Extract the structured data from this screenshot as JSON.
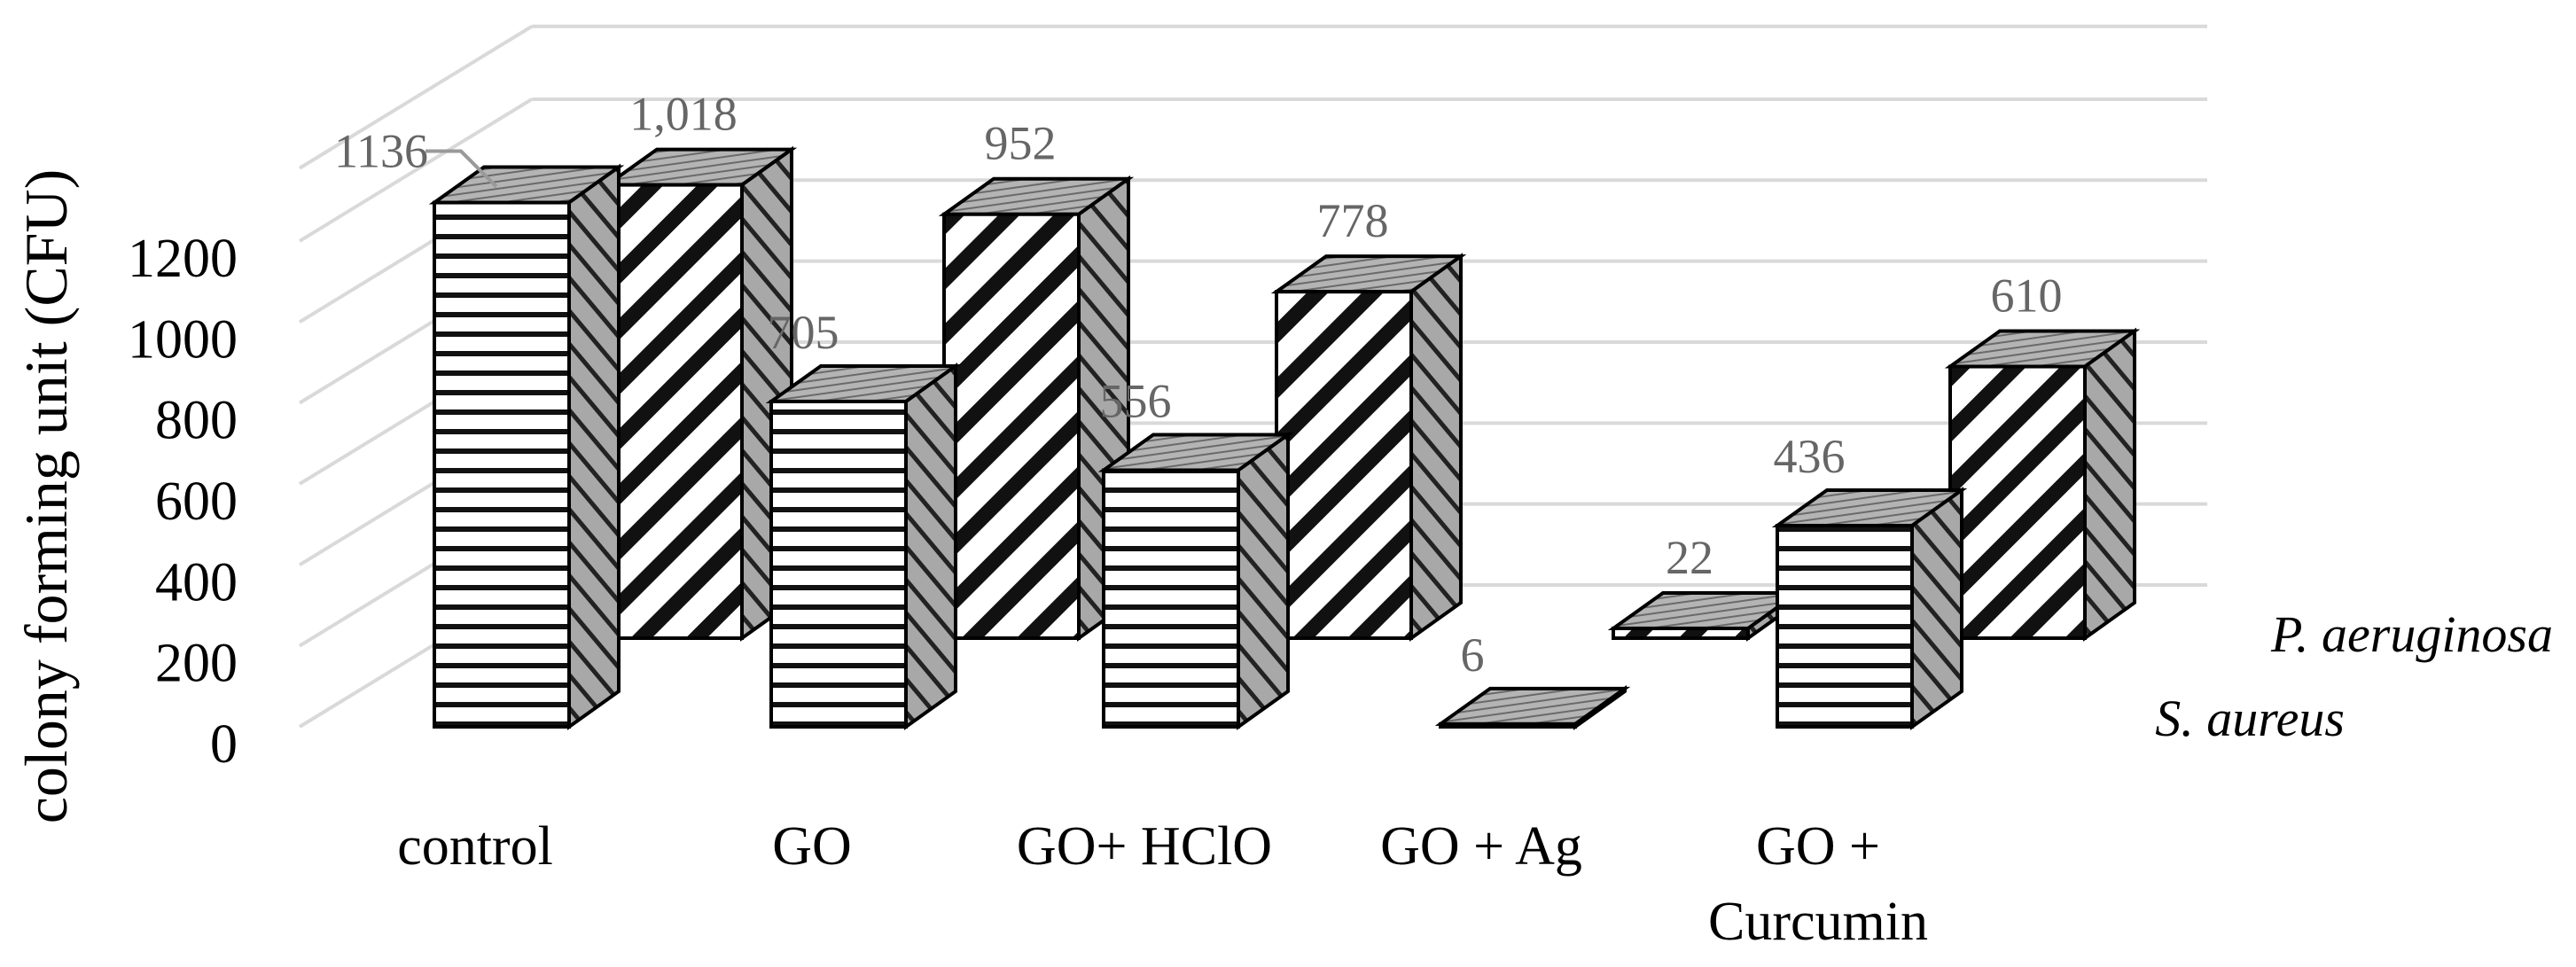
{
  "chart_data": {
    "type": "bar",
    "subtype": "3d-clustered-columns",
    "title": "",
    "xlabel": "",
    "ylabel": "colony forming unit (CFU)",
    "ylim": [
      0,
      1200
    ],
    "yticks": [
      "0",
      "200",
      "400",
      "600",
      "800",
      "1000",
      "1200"
    ],
    "grid": true,
    "categories": [
      "control",
      "GO",
      "GO+ HClO",
      "GO + Ag",
      "GO + Curcumin"
    ],
    "series": [
      {
        "name": "S. aureus",
        "values": [
          1136,
          705,
          556,
          6,
          436
        ],
        "labels": [
          "1136",
          "705",
          "556",
          "6",
          "436"
        ],
        "pattern": "horizontal-stripes"
      },
      {
        "name": "P. aeruginosa",
        "values": [
          1018,
          952,
          778,
          22,
          610
        ],
        "labels": [
          "1,018",
          "952",
          "778",
          "22",
          "610"
        ],
        "pattern": "diagonal-stripes"
      }
    ],
    "legend_position": "right-depth-axis"
  }
}
